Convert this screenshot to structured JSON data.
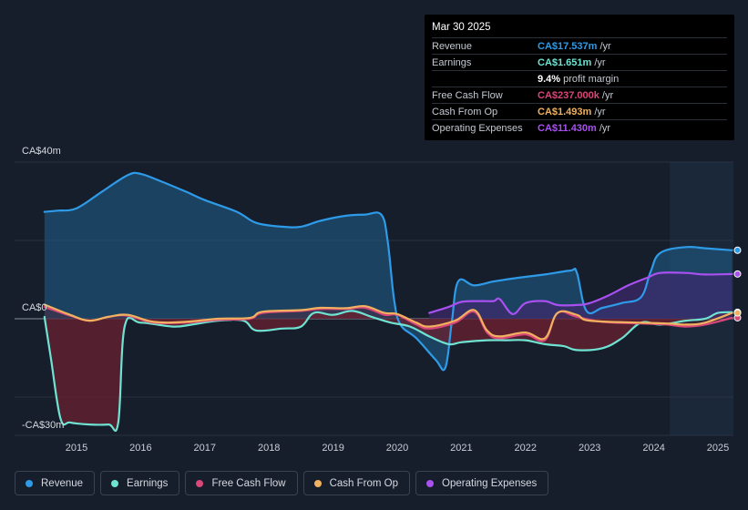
{
  "tooltip": {
    "date": "Mar 30 2025",
    "rows": [
      {
        "label": "Revenue",
        "value": "CA$17.537m",
        "unit": "/yr",
        "color": "#2e9be8"
      },
      {
        "label": "Earnings",
        "value": "CA$1.651m",
        "unit": "/yr",
        "color": "#6fe3d2"
      },
      {
        "label": "",
        "value": "9.4%",
        "unit": "profit margin",
        "color": "#ffffff"
      },
      {
        "label": "Free Cash Flow",
        "value": "CA$237.000k",
        "unit": "/yr",
        "color": "#d9467a"
      },
      {
        "label": "Cash From Op",
        "value": "CA$1.493m",
        "unit": "/yr",
        "color": "#f0b25e"
      },
      {
        "label": "Operating Expenses",
        "value": "CA$11.430m",
        "unit": "/yr",
        "color": "#a950f0"
      }
    ]
  },
  "legend": [
    {
      "label": "Revenue",
      "color": "#2e9be8"
    },
    {
      "label": "Earnings",
      "color": "#6fe3d2"
    },
    {
      "label": "Free Cash Flow",
      "color": "#d9467a"
    },
    {
      "label": "Cash From Op",
      "color": "#f0b25e"
    },
    {
      "label": "Operating Expenses",
      "color": "#a950f0"
    }
  ],
  "chart_data": {
    "type": "area",
    "y_unit": "CA$ m",
    "ylim": [
      -30,
      40
    ],
    "y_ticks": [
      {
        "value": 40,
        "label": "CA$40m"
      },
      {
        "value": 0,
        "label": "CA$0"
      },
      {
        "value": -30,
        "label": "-CA$30m"
      }
    ],
    "x_ticks": [
      "2015",
      "2016",
      "2017",
      "2018",
      "2019",
      "2020",
      "2021",
      "2022",
      "2023",
      "2024",
      "2025"
    ],
    "xlim": [
      2014.6,
      2025.3
    ],
    "highlight_start": 2024.25,
    "series": [
      {
        "name": "Revenue",
        "color": "#2e9be8",
        "fill": "area",
        "points": [
          [
            2014.5,
            27.3
          ],
          [
            2014.7,
            27.6
          ],
          [
            2015.0,
            28.2
          ],
          [
            2015.4,
            32.5
          ],
          [
            2015.8,
            36.7
          ],
          [
            2016.0,
            37.0
          ],
          [
            2016.3,
            35.2
          ],
          [
            2016.7,
            32.5
          ],
          [
            2017.0,
            30.3
          ],
          [
            2017.5,
            27.3
          ],
          [
            2017.8,
            24.5
          ],
          [
            2018.2,
            23.5
          ],
          [
            2018.5,
            23.5
          ],
          [
            2018.8,
            25.0
          ],
          [
            2019.2,
            26.3
          ],
          [
            2019.5,
            26.6
          ],
          [
            2019.75,
            26.6
          ],
          [
            2019.85,
            20.0
          ],
          [
            2019.95,
            5.0
          ],
          [
            2020.05,
            -1.5
          ],
          [
            2020.3,
            -5.0
          ],
          [
            2020.6,
            -10.5
          ],
          [
            2020.75,
            -12.5
          ],
          [
            2020.85,
            -1.0
          ],
          [
            2020.95,
            9.5
          ],
          [
            2021.2,
            8.5
          ],
          [
            2021.5,
            9.5
          ],
          [
            2021.9,
            10.5
          ],
          [
            2022.3,
            11.3
          ],
          [
            2022.7,
            12.3
          ],
          [
            2022.8,
            11.8
          ],
          [
            2022.95,
            2.0
          ],
          [
            2023.2,
            2.8
          ],
          [
            2023.5,
            4.0
          ],
          [
            2023.8,
            5.5
          ],
          [
            2023.95,
            12.0
          ],
          [
            2024.1,
            16.8
          ],
          [
            2024.5,
            18.3
          ],
          [
            2024.8,
            18.0
          ],
          [
            2025.22,
            17.5
          ]
        ]
      },
      {
        "name": "Earnings",
        "color": "#6fe3d2",
        "fill": "area",
        "points": [
          [
            2014.5,
            0.5
          ],
          [
            2014.6,
            -10.0
          ],
          [
            2014.75,
            -25.5
          ],
          [
            2014.9,
            -26.5
          ],
          [
            2015.2,
            -27.0
          ],
          [
            2015.5,
            -27.0
          ],
          [
            2015.65,
            -26.5
          ],
          [
            2015.75,
            -2.0
          ],
          [
            2016.0,
            -1.0
          ],
          [
            2016.5,
            -2.0
          ],
          [
            2016.8,
            -1.5
          ],
          [
            2017.2,
            -0.5
          ],
          [
            2017.6,
            -0.5
          ],
          [
            2017.8,
            -3.0
          ],
          [
            2018.2,
            -2.5
          ],
          [
            2018.5,
            -2.0
          ],
          [
            2018.7,
            1.5
          ],
          [
            2019.0,
            1.0
          ],
          [
            2019.3,
            2.0
          ],
          [
            2019.6,
            0.5
          ],
          [
            2019.9,
            -1.0
          ],
          [
            2020.2,
            -2.0
          ],
          [
            2020.5,
            -4.5
          ],
          [
            2020.8,
            -6.5
          ],
          [
            2021.0,
            -6.0
          ],
          [
            2021.4,
            -5.5
          ],
          [
            2021.7,
            -5.5
          ],
          [
            2022.0,
            -5.5
          ],
          [
            2022.3,
            -6.5
          ],
          [
            2022.6,
            -7.0
          ],
          [
            2022.8,
            -8.0
          ],
          [
            2023.2,
            -7.5
          ],
          [
            2023.5,
            -5.0
          ],
          [
            2023.8,
            -1.0
          ],
          [
            2024.1,
            -1.5
          ],
          [
            2024.5,
            -0.5
          ],
          [
            2024.8,
            0.0
          ],
          [
            2025.0,
            1.5
          ],
          [
            2025.22,
            1.65
          ]
        ]
      },
      {
        "name": "Free Cash Flow",
        "color": "#d9467a",
        "fill": "area",
        "points": [
          [
            2014.5,
            3.0
          ],
          [
            2014.9,
            0.8
          ],
          [
            2015.2,
            -0.5
          ],
          [
            2015.5,
            0.5
          ],
          [
            2015.8,
            0.8
          ],
          [
            2016.2,
            -1.0
          ],
          [
            2016.7,
            -1.0
          ],
          [
            2017.2,
            -0.3
          ],
          [
            2017.7,
            0.0
          ],
          [
            2017.9,
            1.5
          ],
          [
            2018.5,
            2.0
          ],
          [
            2018.8,
            2.5
          ],
          [
            2019.2,
            2.5
          ],
          [
            2019.5,
            2.8
          ],
          [
            2019.8,
            1.0
          ],
          [
            2020.0,
            1.0
          ],
          [
            2020.3,
            -1.5
          ],
          [
            2020.5,
            -2.5
          ],
          [
            2020.9,
            -1.0
          ],
          [
            2021.2,
            1.8
          ],
          [
            2021.4,
            -3.5
          ],
          [
            2021.6,
            -5.0
          ],
          [
            2022.0,
            -4.0
          ],
          [
            2022.3,
            -5.5
          ],
          [
            2022.5,
            1.5
          ],
          [
            2022.8,
            0.5
          ],
          [
            2023.2,
            -0.8
          ],
          [
            2023.8,
            -1.2
          ],
          [
            2024.2,
            -1.5
          ],
          [
            2024.5,
            -2.0
          ],
          [
            2024.8,
            -1.5
          ],
          [
            2025.22,
            0.24
          ]
        ]
      },
      {
        "name": "Cash From Op",
        "color": "#f0b25e",
        "fill": "none",
        "points": [
          [
            2014.5,
            3.6
          ],
          [
            2014.9,
            1.0
          ],
          [
            2015.2,
            -0.5
          ],
          [
            2015.5,
            0.5
          ],
          [
            2015.8,
            1.0
          ],
          [
            2016.2,
            -0.8
          ],
          [
            2016.7,
            -0.8
          ],
          [
            2017.2,
            0.0
          ],
          [
            2017.7,
            0.2
          ],
          [
            2017.9,
            1.8
          ],
          [
            2018.5,
            2.2
          ],
          [
            2018.8,
            2.8
          ],
          [
            2019.2,
            2.7
          ],
          [
            2019.5,
            3.2
          ],
          [
            2019.8,
            1.5
          ],
          [
            2020.0,
            1.2
          ],
          [
            2020.3,
            -1.0
          ],
          [
            2020.5,
            -2.0
          ],
          [
            2020.9,
            -0.5
          ],
          [
            2021.2,
            2.2
          ],
          [
            2021.4,
            -3.0
          ],
          [
            2021.6,
            -4.5
          ],
          [
            2022.0,
            -3.5
          ],
          [
            2022.3,
            -5.0
          ],
          [
            2022.5,
            1.5
          ],
          [
            2022.8,
            1.0
          ],
          [
            2023.0,
            -0.5
          ],
          [
            2023.8,
            -1.0
          ],
          [
            2024.2,
            -1.2
          ],
          [
            2024.5,
            -1.5
          ],
          [
            2024.8,
            -1.0
          ],
          [
            2025.22,
            1.49
          ]
        ]
      },
      {
        "name": "Operating Expenses",
        "color": "#a950f0",
        "fill": "area",
        "points": [
          [
            2020.5,
            1.5
          ],
          [
            2020.8,
            3.0
          ],
          [
            2021.0,
            4.3
          ],
          [
            2021.3,
            4.5
          ],
          [
            2021.5,
            4.5
          ],
          [
            2021.6,
            5.0
          ],
          [
            2021.8,
            1.2
          ],
          [
            2022.0,
            4.0
          ],
          [
            2022.3,
            4.5
          ],
          [
            2022.5,
            3.5
          ],
          [
            2022.8,
            3.5
          ],
          [
            2023.0,
            4.0
          ],
          [
            2023.3,
            6.0
          ],
          [
            2023.6,
            8.5
          ],
          [
            2023.9,
            10.5
          ],
          [
            2024.1,
            11.7
          ],
          [
            2024.5,
            11.7
          ],
          [
            2024.8,
            11.3
          ],
          [
            2025.22,
            11.43
          ]
        ]
      }
    ]
  }
}
